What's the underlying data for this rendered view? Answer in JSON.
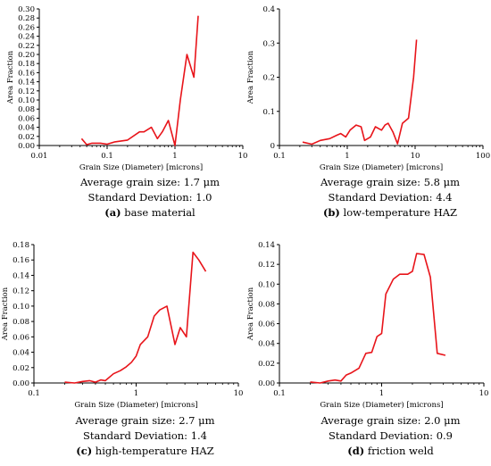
{
  "chart_data": [
    {
      "type": "line",
      "xscale": "log",
      "xlim": [
        0.01,
        10
      ],
      "ylim": [
        0,
        0.3
      ],
      "x_ticks": [
        "0.01",
        "0.1",
        "1",
        "10"
      ],
      "y_ticks": [
        "0.00",
        "0.02",
        "0.04",
        "0.06",
        "0.08",
        "0.10",
        "0.12",
        "0.14",
        "0.16",
        "0.18",
        "0.20",
        "0.22",
        "0.24",
        "0.26",
        "0.28",
        "0.30"
      ],
      "xlabel": "Grain Size (Diameter) [microns]",
      "ylabel": "Area Fraction",
      "series_color": "#e8141a",
      "x": [
        0.042,
        0.05,
        0.06,
        0.08,
        0.1,
        0.13,
        0.2,
        0.3,
        0.35,
        0.45,
        0.55,
        0.65,
        0.8,
        1.0,
        1.2,
        1.5,
        1.9,
        2.2
      ],
      "y": [
        0.015,
        0.002,
        0.005,
        0.005,
        0.003,
        0.008,
        0.012,
        0.03,
        0.03,
        0.04,
        0.015,
        0.03,
        0.055,
        0.0,
        0.1,
        0.2,
        0.15,
        0.285
      ],
      "caption_1": "Average grain size: 1.7 μm",
      "caption_2": "Standard Deviation: 1.0",
      "label_letter": "(a)",
      "label_text": "base material"
    },
    {
      "type": "line",
      "xscale": "log",
      "xlim": [
        0.1,
        100
      ],
      "ylim": [
        0,
        0.4
      ],
      "x_ticks": [
        "0.1",
        "1",
        "10",
        "100"
      ],
      "y_ticks": [
        "0",
        "0.1",
        "0.2",
        "0.3",
        "0.4"
      ],
      "xlabel": "Grain Size (Diameter) [microns]",
      "ylabel": "Area Fraction",
      "series_color": "#e8141a",
      "x": [
        0.22,
        0.3,
        0.4,
        0.55,
        0.7,
        0.8,
        0.95,
        1.1,
        1.35,
        1.6,
        1.8,
        2.2,
        2.6,
        3.2,
        3.6,
        4.0,
        4.7,
        5.5,
        6.5,
        8.0,
        9.5,
        10.5
      ],
      "y": [
        0.01,
        0.004,
        0.015,
        0.02,
        0.03,
        0.035,
        0.025,
        0.045,
        0.06,
        0.055,
        0.015,
        0.025,
        0.055,
        0.045,
        0.06,
        0.065,
        0.04,
        0.005,
        0.065,
        0.08,
        0.2,
        0.31
      ],
      "caption_1": "Average grain size: 5.8 μm",
      "caption_2": "Standard Deviation: 4.4",
      "label_letter": "(b)",
      "label_text": "low-temperature HAZ"
    },
    {
      "type": "line",
      "xscale": "log",
      "xlim": [
        0.1,
        10
      ],
      "ylim": [
        0,
        0.18
      ],
      "x_ticks": [
        "0.1",
        "1",
        "10"
      ],
      "y_ticks": [
        "0.00",
        "0.02",
        "0.04",
        "0.06",
        "0.08",
        "0.10",
        "0.12",
        "0.14",
        "0.16",
        "0.18"
      ],
      "xlabel": "Grain Size (Diameter) [microns]",
      "ylabel": "Area Fraction",
      "series_color": "#e8141a",
      "x": [
        0.2,
        0.25,
        0.3,
        0.35,
        0.4,
        0.45,
        0.5,
        0.6,
        0.7,
        0.8,
        0.9,
        1.0,
        1.1,
        1.3,
        1.5,
        1.7,
        2.0,
        2.4,
        2.7,
        3.1,
        3.6,
        4.1,
        4.8
      ],
      "y": [
        0.001,
        0.0,
        0.002,
        0.003,
        0.001,
        0.004,
        0.003,
        0.012,
        0.016,
        0.021,
        0.027,
        0.035,
        0.05,
        0.06,
        0.087,
        0.095,
        0.1,
        0.05,
        0.072,
        0.06,
        0.17,
        0.16,
        0.145
      ],
      "caption_1": "Average grain size: 2.7 μm",
      "caption_2": "Standard Deviation: 1.4",
      "label_letter": "(c)",
      "label_text": "high-temperature HAZ"
    },
    {
      "type": "line",
      "xscale": "log",
      "xlim": [
        0.1,
        10
      ],
      "ylim": [
        0,
        0.14
      ],
      "x_ticks": [
        "0.1",
        "1",
        "10"
      ],
      "y_ticks": [
        "0.00",
        "0.02",
        "0.04",
        "0.06",
        "0.08",
        "0.10",
        "0.12",
        "0.14"
      ],
      "xlabel": "Grain Size (Diameter) [microns]",
      "ylabel": "Area Fraction",
      "series_color": "#e8141a",
      "x": [
        0.2,
        0.25,
        0.3,
        0.35,
        0.4,
        0.45,
        0.5,
        0.6,
        0.7,
        0.8,
        0.9,
        1.0,
        1.1,
        1.3,
        1.5,
        1.8,
        2.0,
        2.2,
        2.6,
        3.0,
        3.5,
        4.2
      ],
      "y": [
        0.001,
        0.0,
        0.002,
        0.003,
        0.002,
        0.008,
        0.01,
        0.015,
        0.03,
        0.031,
        0.047,
        0.05,
        0.09,
        0.105,
        0.11,
        0.11,
        0.113,
        0.131,
        0.13,
        0.107,
        0.03,
        0.028
      ],
      "caption_1": "Average grain size: 2.0 μm",
      "caption_2": "Standard Deviation: 0.9",
      "label_letter": "(d)",
      "label_text": "friction weld"
    }
  ]
}
